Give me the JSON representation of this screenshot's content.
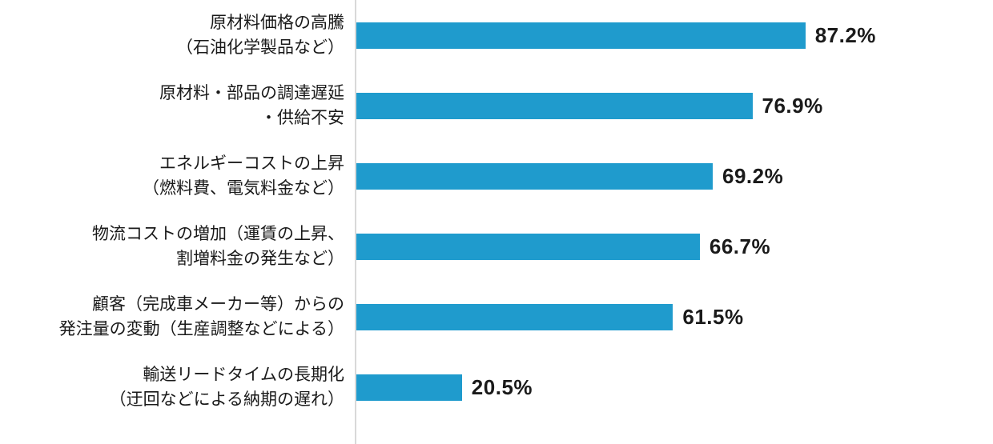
{
  "chart_data": {
    "type": "bar",
    "orientation": "horizontal",
    "title": "",
    "xlabel": "",
    "ylabel": "",
    "xlim": [
      0,
      100
    ],
    "grid": false,
    "legend": "none",
    "bar_color": "#1F9BCD",
    "axis_line_color": "#D9D9D9",
    "text_color": "#1A1A1A",
    "categories": [
      "原材料価格の高騰（石油化学製品など）",
      "原材料・部品の調達遅延・供給不安",
      "エネルギーコストの上昇（燃料費、電気料金など）",
      "物流コストの増加（運賃の上昇、割増料金の発生など）",
      "顧客（完成車メーカー等）からの発注量の変動（生産調整などによる）",
      "輸送リードタイムの長期化（迂回などによる納期の遅れ）"
    ],
    "values": [
      87.2,
      76.9,
      69.2,
      66.7,
      61.5,
      20.5
    ],
    "value_labels": [
      "87.2%",
      "76.9%",
      "69.2%",
      "66.7%",
      "61.5%",
      "20.5%"
    ]
  },
  "rows": [
    {
      "label_line1": "原材料価格の高騰",
      "label_line2": "（石油化学製品など）",
      "value": 87.2,
      "value_label": "87.2%"
    },
    {
      "label_line1": "原材料・部品の調達遅延",
      "label_line2": "・供給不安",
      "value": 76.9,
      "value_label": "76.9%"
    },
    {
      "label_line1": "エネルギーコストの上昇",
      "label_line2": "（燃料費、電気料金など）",
      "value": 69.2,
      "value_label": "69.2%"
    },
    {
      "label_line1": "物流コストの増加（運賃の上昇、",
      "label_line2": "割増料金の発生など）",
      "value": 66.7,
      "value_label": "66.7%"
    },
    {
      "label_line1": "顧客（完成車メーカー等）からの",
      "label_line2": "発注量の変動（生産調整などによる）",
      "value": 61.5,
      "value_label": "61.5%"
    },
    {
      "label_line1": "輸送リードタイムの長期化",
      "label_line2": "（迂回などによる納期の遅れ）",
      "value": 20.5,
      "value_label": "20.5%"
    }
  ]
}
